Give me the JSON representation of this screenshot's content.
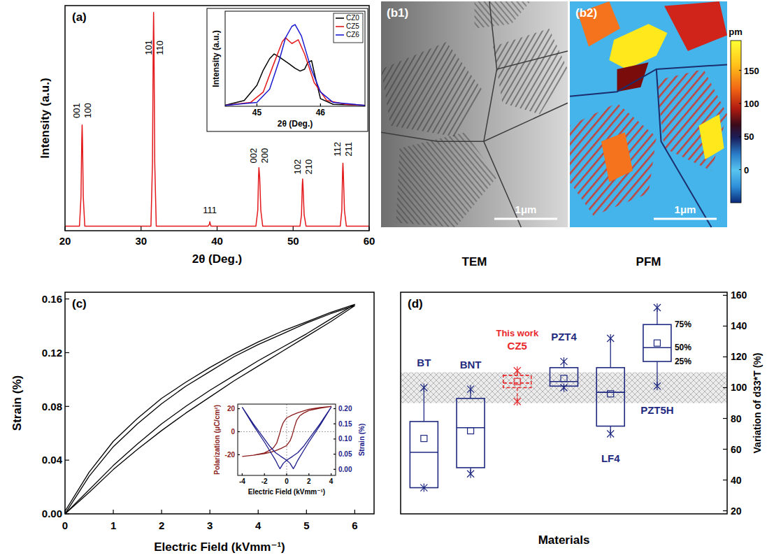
{
  "chart_data": [
    {
      "type": "line",
      "title": "(a)",
      "xlabel": "2θ (Deg.)",
      "ylabel": "Intensity (a.u.)",
      "xlim": [
        20,
        60
      ],
      "xticks": [
        20,
        30,
        40,
        50,
        60
      ],
      "ylim": [
        0,
        100
      ],
      "tick_labels": "x",
      "series": [
        {
          "color": "#e3191c",
          "x": [
            20,
            21.9,
            22.1,
            22.2,
            22.25,
            22.3,
            22.4,
            22.6,
            31.3,
            31.5,
            31.6,
            31.65,
            31.7,
            31.8,
            32.0,
            38.8,
            39.0,
            39.05,
            39.1,
            39.2,
            39.4,
            45.1,
            45.35,
            45.45,
            45.5,
            45.6,
            45.75,
            46.0,
            50.9,
            51.1,
            51.2,
            51.25,
            51.3,
            51.45,
            51.7,
            56.2,
            56.4,
            56.5,
            56.55,
            56.6,
            56.75,
            57.0,
            60
          ],
          "values": [
            2,
            2,
            15,
            40,
            47,
            40,
            15,
            2,
            2,
            30,
            82,
            97,
            82,
            30,
            2,
            2,
            3,
            4,
            3,
            2,
            2,
            2,
            9,
            24,
            28,
            24,
            9,
            2,
            2,
            7,
            20,
            23,
            20,
            7,
            2,
            2,
            9,
            26,
            30,
            26,
            9,
            2,
            2
          ]
        }
      ],
      "annotations": [
        {
          "texts": [
            "001",
            "100"
          ],
          "x": 22.25,
          "y": 50
        },
        {
          "texts": [
            "101",
            "110"
          ],
          "x": 31.65,
          "y": 78
        },
        {
          "texts": [
            "111"
          ],
          "x": 39.05,
          "y": 7
        },
        {
          "texts": [
            "002",
            "200"
          ],
          "x": 45.5,
          "y": 30
        },
        {
          "texts": [
            "102",
            "210"
          ],
          "x": 51.25,
          "y": 25
        },
        {
          "texts": [
            "112",
            "211"
          ],
          "x": 56.55,
          "y": 33
        }
      ]
    },
    {
      "type": "line",
      "xlabel": "2θ (Deg.)",
      "ylabel": "Intensity (a.u.)",
      "xlim": [
        44.5,
        46.7
      ],
      "xticks": [
        45,
        46
      ],
      "ylim": [
        0,
        100
      ],
      "tick_labels": "x",
      "legend": "top-right",
      "series": [
        {
          "name": "CZ0",
          "color": "#000000",
          "x": [
            44.5,
            44.8,
            45.0,
            45.1,
            45.2,
            45.27,
            45.35,
            45.5,
            45.6,
            45.68,
            45.75,
            45.8,
            45.86,
            45.92,
            46.0,
            46.2,
            46.7
          ],
          "values": [
            1,
            6,
            22,
            38,
            50,
            55,
            52,
            45,
            40,
            37,
            39,
            46,
            48,
            30,
            8,
            2,
            1
          ]
        },
        {
          "name": "CZ5",
          "color": "#e3191c",
          "x": [
            44.5,
            44.9,
            45.1,
            45.25,
            45.4,
            45.45,
            45.55,
            45.6,
            45.65,
            45.75,
            45.9,
            46.1,
            46.4,
            46.7
          ],
          "values": [
            1,
            4,
            15,
            42,
            68,
            72,
            66,
            68,
            70,
            55,
            25,
            6,
            2,
            1
          ]
        },
        {
          "name": "CZ6",
          "color": "#1a1ad0",
          "x": [
            44.5,
            45.0,
            45.2,
            45.35,
            45.45,
            45.55,
            45.6,
            45.7,
            45.85,
            46.0,
            46.2,
            46.7
          ],
          "values": [
            1,
            4,
            18,
            48,
            72,
            84,
            86,
            74,
            40,
            15,
            4,
            1
          ]
        }
      ]
    },
    {
      "type": "image",
      "title": "(b1)",
      "caption": "TEM",
      "scale_bar": "1μm"
    },
    {
      "type": "image",
      "title": "(b2)",
      "caption": "PFM",
      "scale_bar": "1μm",
      "colorbar": {
        "label": "pm",
        "range": [
          -50,
          195
        ],
        "ticks": [
          0,
          50,
          100,
          150
        ]
      }
    },
    {
      "type": "line",
      "title": "(c)",
      "xlabel": "Electric Field (kVmm⁻¹)",
      "ylabel": "Strain (%)",
      "xlim": [
        0,
        6.4
      ],
      "xticks": [
        0,
        1,
        2,
        3,
        4,
        5,
        6
      ],
      "ylim": [
        0,
        0.165
      ],
      "yticks": [
        {
          "value": 0,
          "label": "0.00"
        },
        {
          "value": 0.04,
          "label": "0.04"
        },
        {
          "value": 0.08,
          "label": "0.08"
        },
        {
          "value": 0.12,
          "label": "0.12"
        },
        {
          "value": 0.16,
          "label": "0.16"
        }
      ],
      "series": [
        {
          "color": "#000000",
          "x": [
            0,
            0.5,
            1,
            1.5,
            2,
            2.5,
            3,
            3.5,
            4,
            4.5,
            5,
            5.5,
            6,
            5.5,
            5,
            4.5,
            4,
            3.5,
            3,
            2.5,
            2,
            1.5,
            1,
            0.5,
            0
          ],
          "values": [
            0,
            0.016,
            0.033,
            0.048,
            0.062,
            0.075,
            0.087,
            0.099,
            0.11,
            0.121,
            0.132,
            0.143,
            0.155,
            0.149,
            0.142,
            0.134,
            0.126,
            0.117,
            0.106,
            0.095,
            0.082,
            0.067,
            0.05,
            0.028,
            0
          ]
        },
        {
          "color": "#000000",
          "x": [
            0,
            0.5,
            1,
            1.5,
            2,
            2.5,
            3,
            3.5,
            4,
            4.5,
            5,
            5.5,
            6,
            5.5,
            5,
            4.5,
            4,
            3.5,
            3,
            2.5,
            2,
            1.5,
            1,
            0.5,
            0
          ],
          "values": [
            0,
            0.018,
            0.036,
            0.052,
            0.067,
            0.08,
            0.092,
            0.103,
            0.114,
            0.124,
            0.134,
            0.145,
            0.156,
            0.15,
            0.143,
            0.136,
            0.128,
            0.119,
            0.109,
            0.098,
            0.086,
            0.071,
            0.054,
            0.031,
            0.002
          ]
        }
      ]
    },
    {
      "type": "line",
      "xlabel": "Electric Field (kVmm⁻¹)",
      "ylabel": "Polarization (μC/cm²)",
      "y2label": "Strain (%)",
      "xlim": [
        -4.4,
        4.4
      ],
      "xticks": [
        -4,
        -2,
        0,
        2,
        4
      ],
      "ylim": [
        -38,
        24
      ],
      "yticks": [
        -20,
        0,
        20
      ],
      "y2lim": [
        -0.02,
        0.215
      ],
      "y2ticks": [
        {
          "value": 0,
          "label": "0.00"
        },
        {
          "value": 0.05,
          "label": "0.05"
        },
        {
          "value": 0.1,
          "label": "0.10"
        },
        {
          "value": 0.15,
          "label": "0.15"
        },
        {
          "value": 0.2,
          "label": "0.20"
        }
      ],
      "series": [
        {
          "color": "#8b1c1c",
          "x": [
            -4,
            -3,
            -2,
            -1.5,
            -1,
            -0.5,
            0,
            0.3,
            0.5,
            0.7,
            0.9,
            1.2,
            1.5,
            2,
            3,
            4,
            3,
            2,
            1.5,
            1,
            0.5,
            0,
            -0.3,
            -0.5,
            -0.7,
            -0.9,
            -1.2,
            -1.5,
            -2,
            -3,
            -4
          ],
          "values": [
            -21.5,
            -20.5,
            -19,
            -18,
            -16.5,
            -14.5,
            -12,
            -8,
            -3,
            4,
            10,
            14,
            16,
            18.5,
            20.5,
            22,
            21,
            19.5,
            18,
            16.5,
            14.5,
            12,
            8,
            3,
            -4,
            -10,
            -14,
            -16,
            -18.5,
            -20.5,
            -21.5
          ]
        },
        {
          "color": "#1c1c8b",
          "axis": "y2",
          "x": [
            -4,
            -3,
            -2,
            -1.5,
            -1,
            -0.5,
            0,
            0.3,
            0.5,
            0.6,
            0.8,
            1,
            1.5,
            2,
            3,
            4,
            3,
            2,
            1.5,
            1,
            0.5,
            0,
            -0.3,
            -0.5,
            -0.6,
            -0.8,
            -1,
            -1.5,
            -2,
            -3,
            -4
          ],
          "values": [
            0.205,
            0.15,
            0.1,
            0.075,
            0.055,
            0.042,
            0.03,
            0.02,
            0.008,
            0.002,
            0.015,
            0.03,
            0.06,
            0.09,
            0.145,
            0.205,
            0.15,
            0.1,
            0.075,
            0.055,
            0.042,
            0.03,
            0.02,
            0.008,
            0.002,
            0.015,
            0.03,
            0.06,
            0.09,
            0.145,
            0.205
          ]
        }
      ]
    },
    {
      "type": "box",
      "title": "(d)",
      "xlabel": "Materials",
      "ylabel": "Variation of d33*T (%)",
      "ylim": [
        18,
        162
      ],
      "yticks": [
        20,
        40,
        60,
        80,
        100,
        120,
        140,
        160
      ],
      "reference_band": [
        90,
        110
      ],
      "series": [
        {
          "name": "BT",
          "color": "#1f2a80",
          "line_style": "solid",
          "min": 35,
          "q1": 35,
          "median": 58,
          "q3": 78,
          "max": 100,
          "mean": 67
        },
        {
          "name": "BNT",
          "color": "#1f2a80",
          "line_style": "solid",
          "min": 44,
          "q1": 48,
          "median": 74,
          "q3": 93,
          "max": 99,
          "mean": 72
        },
        {
          "name": "CZ5",
          "color": "#e8272b",
          "line_style": "dashed",
          "annotation": "This work",
          "min": 91,
          "q1": 100,
          "median": 103,
          "q3": 108,
          "max": 111,
          "mean": 104
        },
        {
          "name": "PZT4",
          "color": "#1f2a80",
          "line_style": "solid",
          "min": 100,
          "q1": 101,
          "median": 104,
          "q3": 113,
          "max": 117,
          "mean": 106
        },
        {
          "name": "LF4",
          "color": "#1f2a80",
          "line_style": "solid",
          "min": 70,
          "q1": 75,
          "median": 97,
          "q3": 113,
          "max": 132,
          "mean": 96
        },
        {
          "name": "PZT5H",
          "color": "#1f2a80",
          "line_style": "solid",
          "min": 101,
          "q1": 117,
          "median": 126,
          "q3": 141,
          "max": 152,
          "mean": 129
        }
      ],
      "quantile_labels": [
        "75%",
        "50%",
        "25%"
      ]
    }
  ]
}
